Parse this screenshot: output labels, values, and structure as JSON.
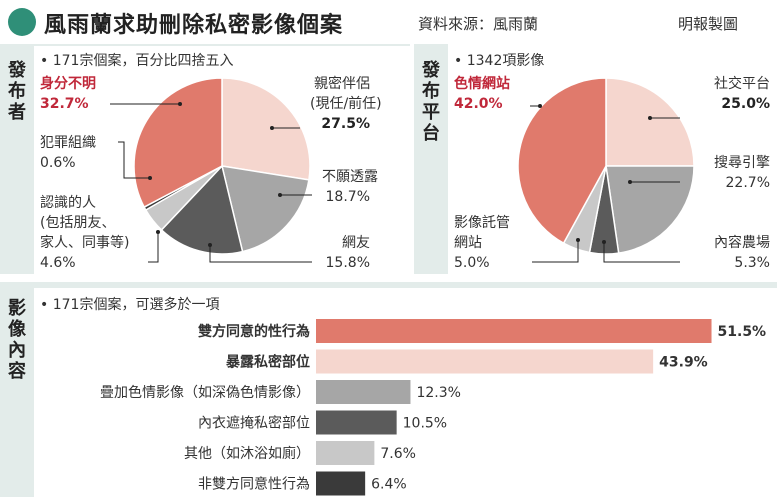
{
  "header": {
    "title": "風雨蘭求助刪除私密影像個案",
    "source": "資料來源：風雨蘭",
    "credit": "明報製圖"
  },
  "panels": {
    "publisher": {
      "label": "發布者",
      "note": "171宗個案，百分比四捨五入"
    },
    "platform": {
      "label": "發布平台",
      "note": "1342項影像"
    },
    "content": {
      "label": "影像內容",
      "note": "171宗個案，可選多於一項"
    }
  },
  "chart_data": [
    {
      "type": "pie",
      "unit": "%",
      "slices": [
        {
          "name": "親密伴侶(現任/前任)",
          "name_lines": [
            "親密伴侶",
            "(現任/前任)"
          ],
          "value": 27.5,
          "label": "27.5%",
          "color": "#f5d6ce",
          "bold": true
        },
        {
          "name": "不願透露",
          "name_lines": [
            "不願透露"
          ],
          "value": 18.7,
          "label": "18.7%",
          "color": "#a6a6a6",
          "bold": false
        },
        {
          "name": "網友",
          "name_lines": [
            "網友"
          ],
          "value": 15.8,
          "label": "15.8%",
          "color": "#5b5b5b",
          "bold": false
        },
        {
          "name": "認識的人(包括朋友、家人、同事等)",
          "name_lines": [
            "認識的人",
            "(包括朋友、",
            "家人、同事等)"
          ],
          "value": 4.6,
          "label": "4.6%",
          "color": "#c8c8c8",
          "bold": false
        },
        {
          "name": "犯罪組織",
          "name_lines": [
            "犯罪組織"
          ],
          "value": 0.6,
          "label": "0.6%",
          "color": "#3a3a3a",
          "bold": false
        },
        {
          "name": "身分不明",
          "name_lines": [
            "身分不明"
          ],
          "value": 32.7,
          "label": "32.7%",
          "color": "#e07a6c",
          "bold": true,
          "highlight": true
        }
      ]
    },
    {
      "type": "pie",
      "unit": "%",
      "slices": [
        {
          "name": "社交平台",
          "name_lines": [
            "社交平台"
          ],
          "value": 25.0,
          "label": "25.0%",
          "color": "#f5d6ce",
          "bold": true
        },
        {
          "name": "搜尋引擎",
          "name_lines": [
            "搜尋引擎"
          ],
          "value": 22.7,
          "label": "22.7%",
          "color": "#a6a6a6",
          "bold": false
        },
        {
          "name": "內容農場",
          "name_lines": [
            "內容農場"
          ],
          "value": 5.3,
          "label": "5.3%",
          "color": "#5b5b5b",
          "bold": false
        },
        {
          "name": "影像託管網站",
          "name_lines": [
            "影像託管",
            "網站"
          ],
          "value": 5.0,
          "label": "5.0%",
          "color": "#c8c8c8",
          "bold": false
        },
        {
          "name": "色情網站",
          "name_lines": [
            "色情網站"
          ],
          "value": 42.0,
          "label": "42.0%",
          "color": "#e07a6c",
          "bold": true,
          "highlight": true
        }
      ]
    },
    {
      "type": "bar",
      "orientation": "horizontal",
      "unit": "%",
      "categories": [
        "雙方同意的性行為",
        "暴露私密部位",
        "疊加色情影像（如深偽色情影像）",
        "內衣遮掩私密部位",
        "其他（如沐浴如廁）",
        "非雙方同意性行為"
      ],
      "values": [
        51.5,
        43.9,
        12.3,
        10.5,
        7.6,
        6.4
      ],
      "value_labels": [
        "51.5%",
        "43.9%",
        "12.3%",
        "10.5%",
        "7.6%",
        "6.4%"
      ],
      "colors": [
        "#e07a6c",
        "#f5d6ce",
        "#a6a6a6",
        "#5b5b5b",
        "#c8c8c8",
        "#3a3a3a"
      ],
      "highlight": [
        true,
        true,
        false,
        false,
        false,
        false
      ],
      "bold_values": [
        true,
        true,
        false,
        false,
        false,
        false
      ]
    }
  ]
}
